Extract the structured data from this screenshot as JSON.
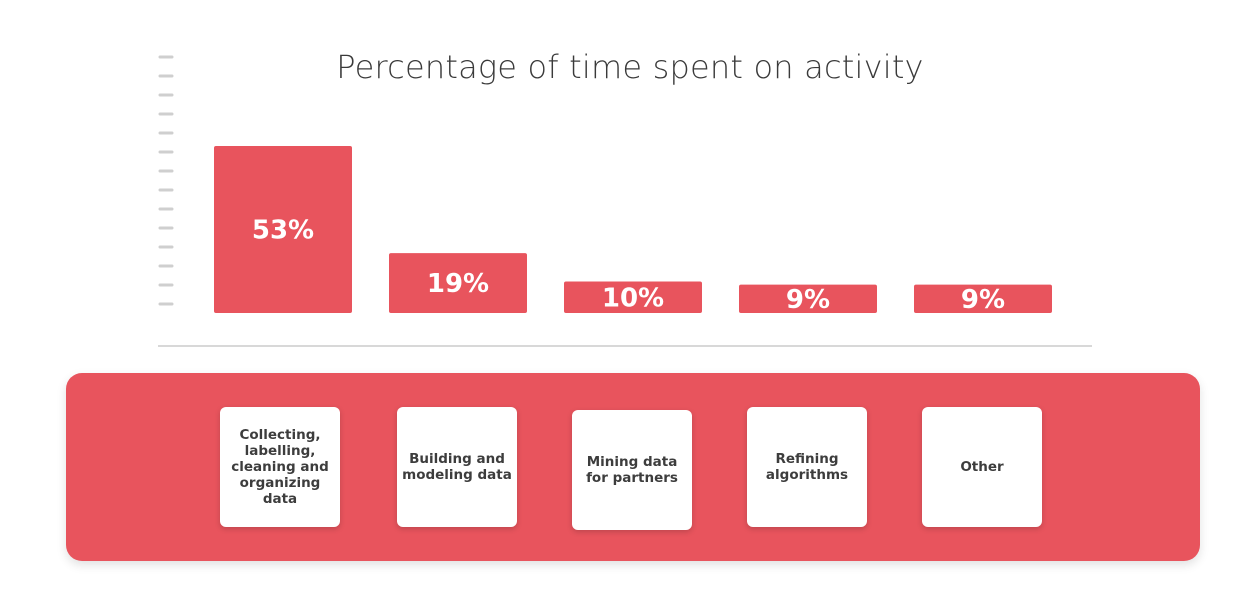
{
  "colors": {
    "bar": "#e8545d",
    "panel": "#e8545d",
    "tick": "#cfcfcf",
    "baseline": "#cccccc"
  },
  "chart_data": {
    "type": "bar",
    "title": "Percentage of time spent on activity",
    "categories": [
      "Collecting, labelling, cleaning and organizing data",
      "Building and modeling data",
      "Mining data for partners",
      "Refining algorithms",
      "Other"
    ],
    "values": [
      53,
      19,
      10,
      9,
      9
    ],
    "data_labels": [
      "53%",
      "19%",
      "10%",
      "9%",
      "9%"
    ],
    "ylim": [
      0,
      60
    ],
    "grid": false
  }
}
